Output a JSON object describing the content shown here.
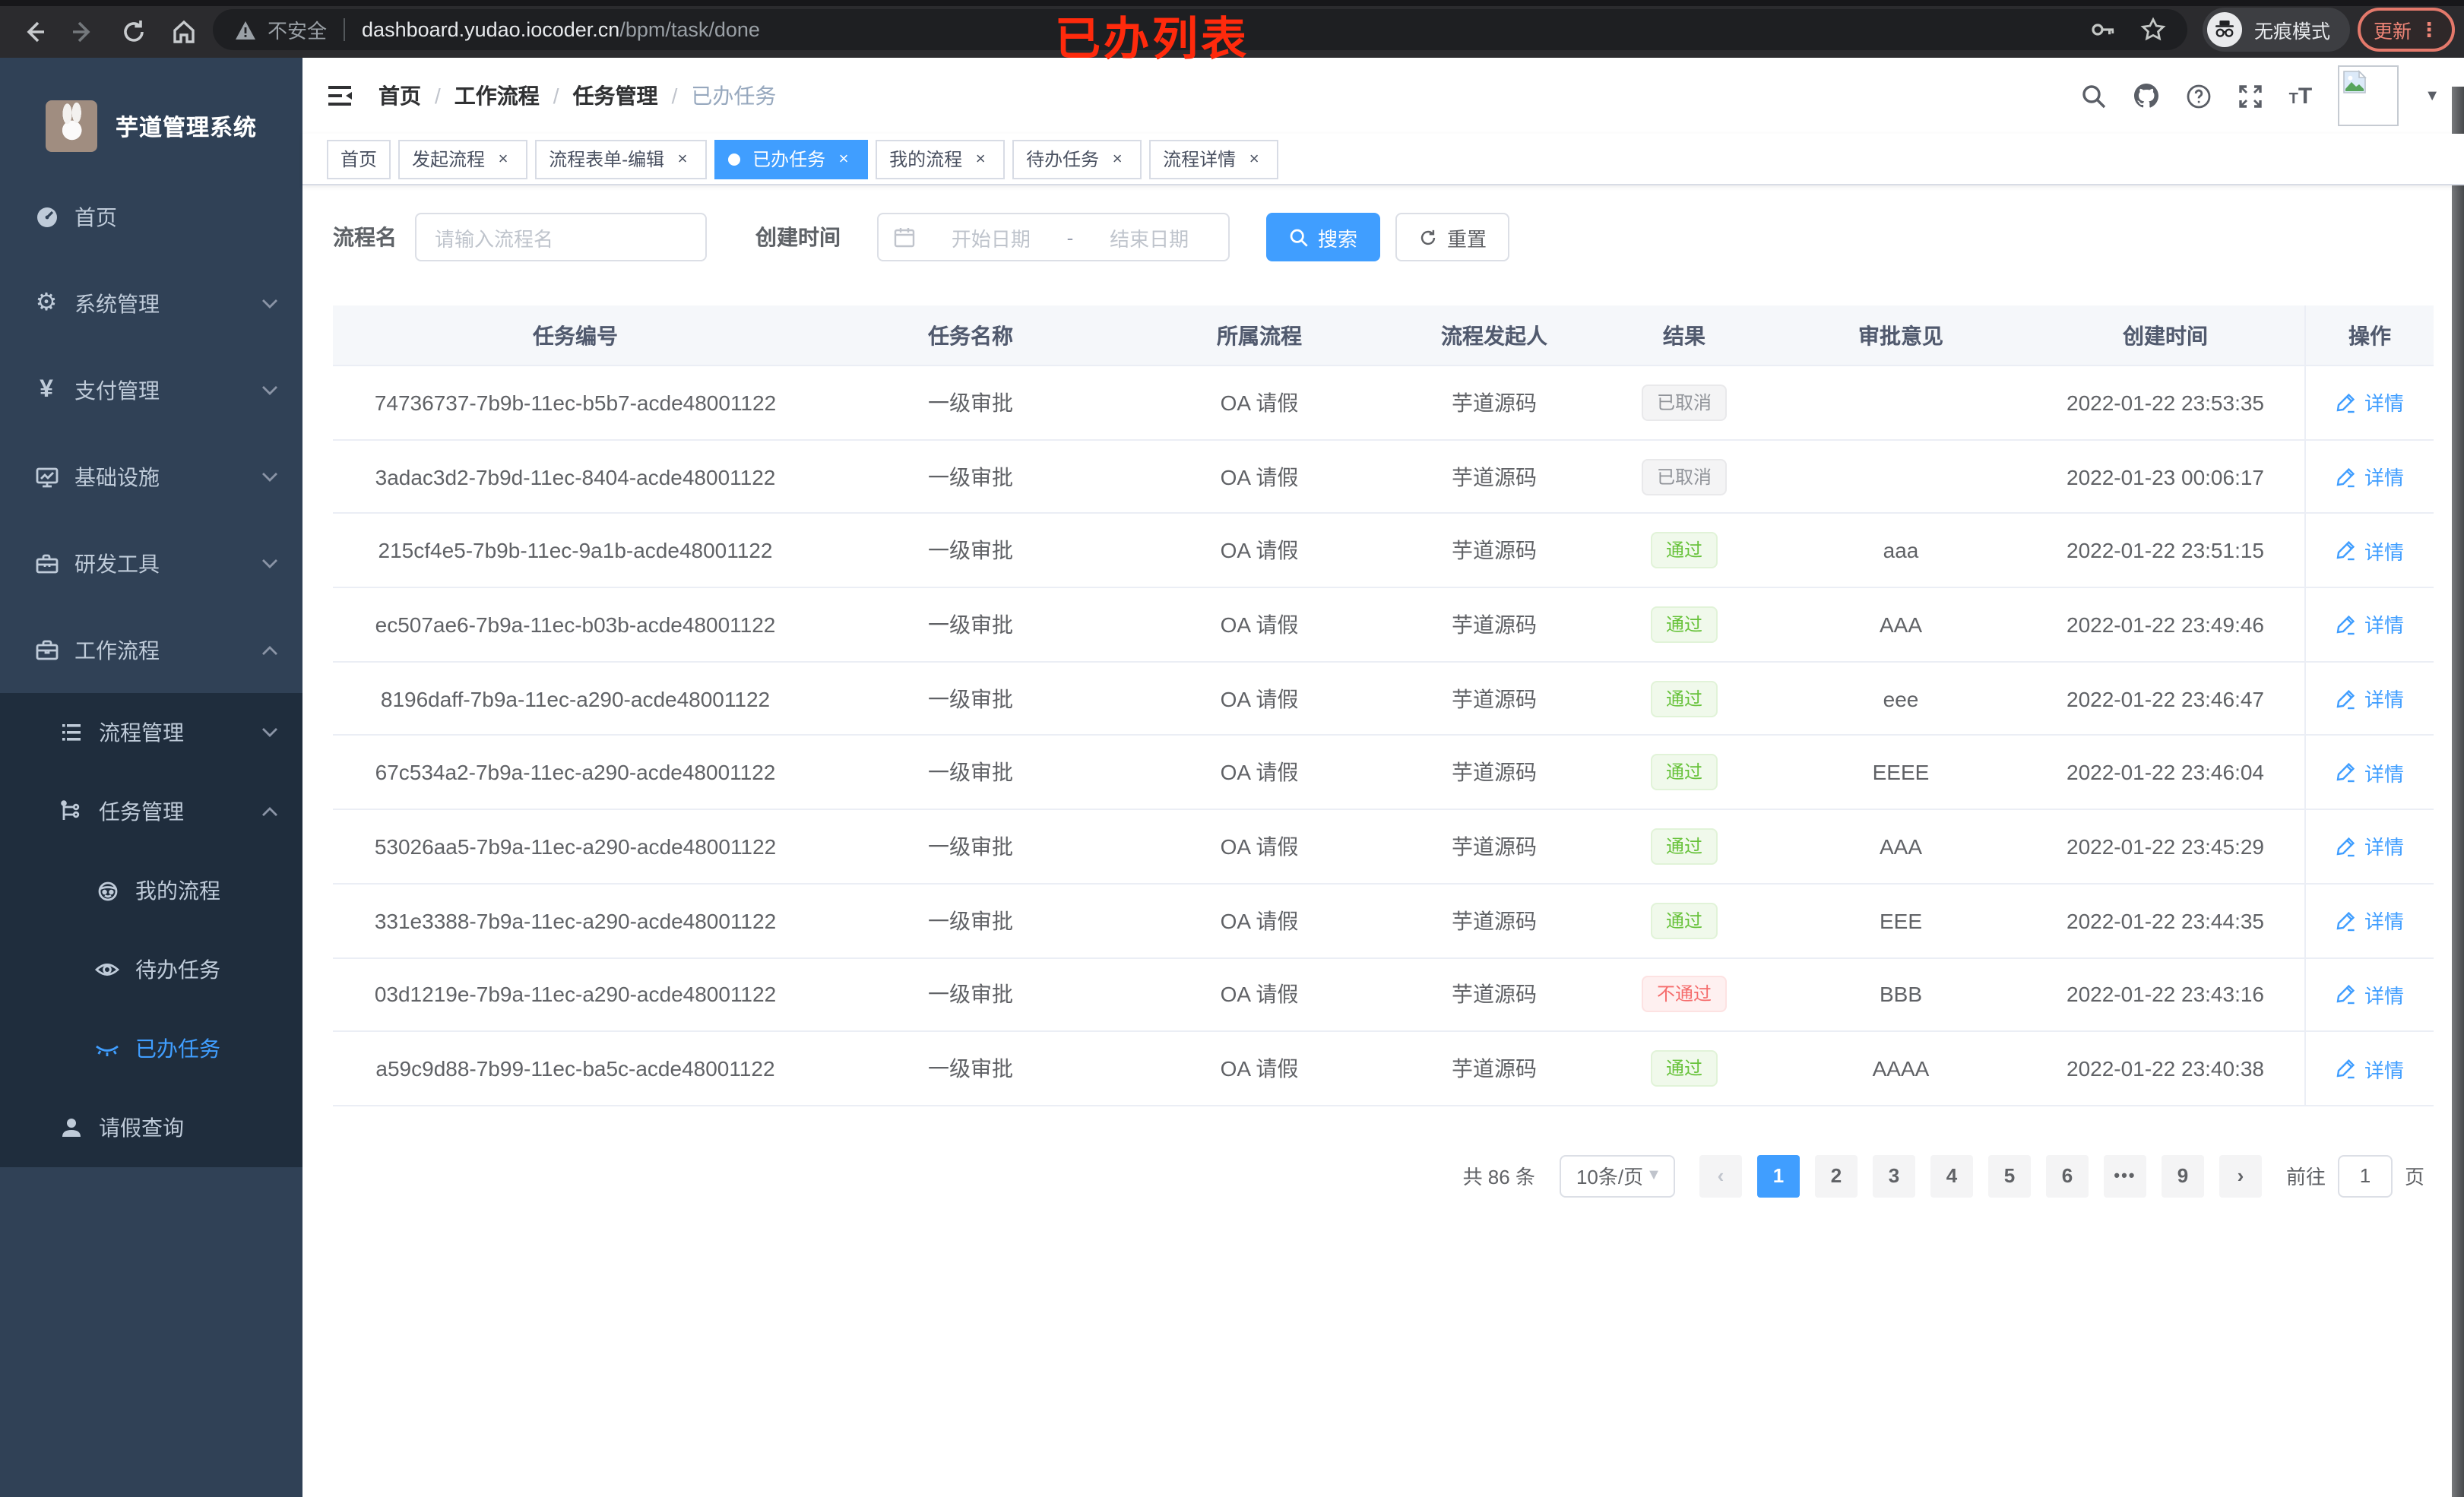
{
  "colors": {
    "accent": "#409eff",
    "success": "#67c23a",
    "danger": "#f56c6c",
    "info": "#909399",
    "sidebar_bg": "#304156",
    "submenu_bg": "#1f2d3d",
    "annotation_red": "#ff2a0c"
  },
  "browser": {
    "security_label": "不安全",
    "url_host": "dashboard.yudao.iocoder.cn",
    "url_path": "/bpm/task/done",
    "incognito_label": "无痕模式",
    "update_label": "更新",
    "menu_dots": "⋮",
    "annotation": "已办列表"
  },
  "sidebar": {
    "title": "芋道管理系统",
    "items": [
      {
        "key": "home",
        "label": "首页",
        "icon": "dashboard-icon",
        "level": 1
      },
      {
        "key": "system",
        "label": "系统管理",
        "icon": "gear-icon",
        "level": 1,
        "chevron": "down"
      },
      {
        "key": "payment",
        "label": "支付管理",
        "icon": "yen-icon",
        "level": 1,
        "chevron": "down"
      },
      {
        "key": "infra",
        "label": "基础设施",
        "icon": "monitor-icon",
        "level": 1,
        "chevron": "down"
      },
      {
        "key": "devtools",
        "label": "研发工具",
        "icon": "toolbox-icon",
        "level": 1,
        "chevron": "down"
      },
      {
        "key": "workflow",
        "label": "工作流程",
        "icon": "briefcase-icon",
        "level": 1,
        "chevron": "up"
      },
      {
        "key": "process-mgmt",
        "label": "流程管理",
        "icon": "list-icon",
        "level": 2,
        "chevron": "down",
        "in_expanded": true
      },
      {
        "key": "task-mgmt",
        "label": "任务管理",
        "icon": "tree-icon",
        "level": 2,
        "chevron": "up",
        "in_expanded": true
      },
      {
        "key": "my-process",
        "label": "我的流程",
        "icon": "robot-icon",
        "level": 3,
        "in_expanded": true
      },
      {
        "key": "todo-tasks",
        "label": "待办任务",
        "icon": "eye-open-icon",
        "level": 3,
        "in_expanded": true
      },
      {
        "key": "done-tasks",
        "label": "已办任务",
        "icon": "eye-closed-icon",
        "level": 3,
        "active": true,
        "in_expanded": true
      },
      {
        "key": "leave-query",
        "label": "请假查询",
        "icon": "user-icon",
        "level": 2,
        "in_expanded": true
      }
    ]
  },
  "header": {
    "breadcrumb": [
      "首页",
      "工作流程",
      "任务管理",
      "已办任务"
    ]
  },
  "tabs": [
    {
      "key": "home",
      "label": "首页",
      "closable": false,
      "active": false
    },
    {
      "key": "start-process",
      "label": "发起流程",
      "closable": true,
      "active": false
    },
    {
      "key": "form-edit",
      "label": "流程表单-编辑",
      "closable": true,
      "active": false
    },
    {
      "key": "done-tasks",
      "label": "已办任务",
      "closable": true,
      "active": true
    },
    {
      "key": "my-process",
      "label": "我的流程",
      "closable": true,
      "active": false
    },
    {
      "key": "todo-tasks",
      "label": "待办任务",
      "closable": true,
      "active": false
    },
    {
      "key": "process-detail",
      "label": "流程详情",
      "closable": true,
      "active": false
    }
  ],
  "filters": {
    "name_label": "流程名",
    "name_placeholder": "请输入流程名",
    "time_label": "创建时间",
    "start_placeholder": "开始日期",
    "range_separator": "-",
    "end_placeholder": "结束日期",
    "search_label": "搜索",
    "reset_label": "重置"
  },
  "table": {
    "columns": [
      "任务编号",
      "任务名称",
      "所属流程",
      "流程发起人",
      "结果",
      "审批意见",
      "创建时间",
      "操作"
    ],
    "action_label": "详情",
    "rows": [
      {
        "id": "74736737-7b9b-11ec-b5b7-acde48001122",
        "name": "一级审批",
        "process": "OA 请假",
        "starter": "芋道源码",
        "result": {
          "label": "已取消",
          "type": "info"
        },
        "comment": "",
        "time": "2022-01-22 23:53:35"
      },
      {
        "id": "3adac3d2-7b9d-11ec-8404-acde48001122",
        "name": "一级审批",
        "process": "OA 请假",
        "starter": "芋道源码",
        "result": {
          "label": "已取消",
          "type": "info"
        },
        "comment": "",
        "time": "2022-01-23 00:06:17"
      },
      {
        "id": "215cf4e5-7b9b-11ec-9a1b-acde48001122",
        "name": "一级审批",
        "process": "OA 请假",
        "starter": "芋道源码",
        "result": {
          "label": "通过",
          "type": "success"
        },
        "comment": "aaa",
        "time": "2022-01-22 23:51:15"
      },
      {
        "id": "ec507ae6-7b9a-11ec-b03b-acde48001122",
        "name": "一级审批",
        "process": "OA 请假",
        "starter": "芋道源码",
        "result": {
          "label": "通过",
          "type": "success"
        },
        "comment": "AAA",
        "time": "2022-01-22 23:49:46"
      },
      {
        "id": "8196daff-7b9a-11ec-a290-acde48001122",
        "name": "一级审批",
        "process": "OA 请假",
        "starter": "芋道源码",
        "result": {
          "label": "通过",
          "type": "success"
        },
        "comment": "eee",
        "time": "2022-01-22 23:46:47"
      },
      {
        "id": "67c534a2-7b9a-11ec-a290-acde48001122",
        "name": "一级审批",
        "process": "OA 请假",
        "starter": "芋道源码",
        "result": {
          "label": "通过",
          "type": "success"
        },
        "comment": "EEEE",
        "time": "2022-01-22 23:46:04"
      },
      {
        "id": "53026aa5-7b9a-11ec-a290-acde48001122",
        "name": "一级审批",
        "process": "OA 请假",
        "starter": "芋道源码",
        "result": {
          "label": "通过",
          "type": "success"
        },
        "comment": "AAA",
        "time": "2022-01-22 23:45:29"
      },
      {
        "id": "331e3388-7b9a-11ec-a290-acde48001122",
        "name": "一级审批",
        "process": "OA 请假",
        "starter": "芋道源码",
        "result": {
          "label": "通过",
          "type": "success"
        },
        "comment": "EEE",
        "time": "2022-01-22 23:44:35"
      },
      {
        "id": "03d1219e-7b9a-11ec-a290-acde48001122",
        "name": "一级审批",
        "process": "OA 请假",
        "starter": "芋道源码",
        "result": {
          "label": "不通过",
          "type": "danger"
        },
        "comment": "BBB",
        "time": "2022-01-22 23:43:16"
      },
      {
        "id": "a59c9d88-7b99-11ec-ba5c-acde48001122",
        "name": "一级审批",
        "process": "OA 请假",
        "starter": "芋道源码",
        "result": {
          "label": "通过",
          "type": "success"
        },
        "comment": "AAAA",
        "time": "2022-01-22 23:40:38"
      }
    ]
  },
  "pagination": {
    "total_label": "共 86 条",
    "page_size": "10条/页",
    "prev": "‹",
    "next": "›",
    "pages": [
      {
        "label": "1",
        "active": true
      },
      {
        "label": "2"
      },
      {
        "label": "3"
      },
      {
        "label": "4"
      },
      {
        "label": "5"
      },
      {
        "label": "6"
      },
      {
        "label": "•••",
        "ellipsis": true
      },
      {
        "label": "9"
      }
    ],
    "goto_label": "前往",
    "goto_value": "1",
    "page_unit": "页"
  }
}
